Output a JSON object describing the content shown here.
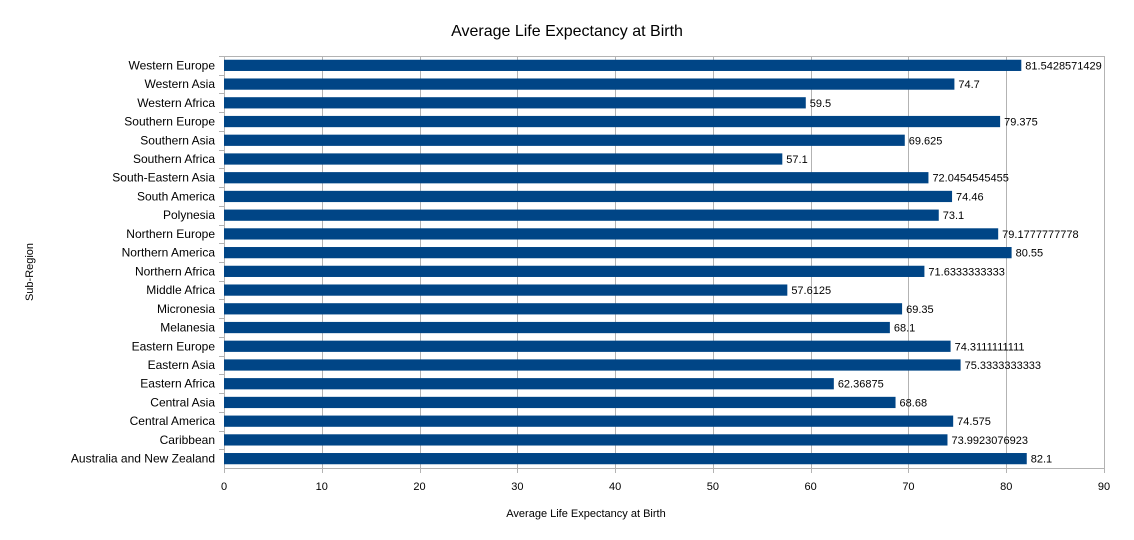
{
  "chart_data": {
    "type": "bar",
    "orientation": "horizontal",
    "title": "Average Life Expectancy at Birth",
    "xlabel": "Average Life Expectancy at Birth",
    "ylabel": "Sub-Region",
    "xlim": [
      0,
      90
    ],
    "xticks": [
      0,
      10,
      20,
      30,
      40,
      50,
      60,
      70,
      80,
      90
    ],
    "grid": "vertical",
    "legend": "none",
    "bar_color": "#004586",
    "categories": [
      "Western Europe",
      "Western Asia",
      "Western Africa",
      "Southern Europe",
      "Southern Asia",
      "Southern Africa",
      "South-Eastern Asia",
      "South America",
      "Polynesia",
      "Northern Europe",
      "Northern America",
      "Northern Africa",
      "Middle Africa",
      "Micronesia",
      "Melanesia",
      "Eastern Europe",
      "Eastern Asia",
      "Eastern Africa",
      "Central Asia",
      "Central America",
      "Caribbean",
      "Australia and New Zealand"
    ],
    "values": [
      81.5428571429,
      74.7,
      59.5,
      79.375,
      69.625,
      57.1,
      72.0454545455,
      74.46,
      73.1,
      79.1777777778,
      80.55,
      71.6333333333,
      57.6125,
      69.35,
      68.1,
      74.3111111111,
      75.3333333333,
      62.36875,
      68.68,
      74.575,
      73.9923076923,
      82.1
    ],
    "value_labels": [
      "81.5428571429",
      "74.7",
      "59.5",
      "79.375",
      "69.625",
      "57.1",
      "72.0454545455",
      "74.46",
      "73.1",
      "79.1777777778",
      "80.55",
      "71.6333333333",
      "57.6125",
      "69.35",
      "68.1",
      "74.3111111111",
      "75.3333333333",
      "62.36875",
      "68.68",
      "74.575",
      "73.9923076923",
      "82.1"
    ]
  }
}
